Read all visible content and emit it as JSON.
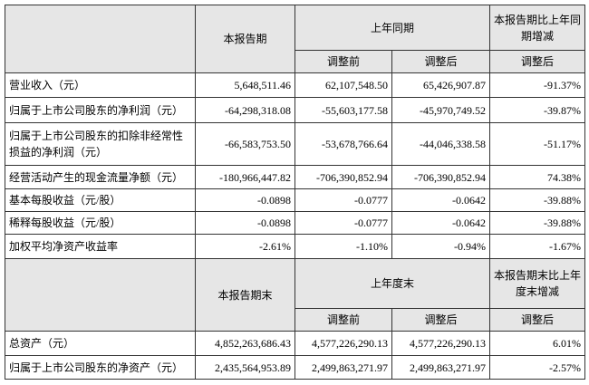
{
  "table1": {
    "header": {
      "current": "本报告期",
      "prior": "上年同期",
      "change": "本报告期比上年同期增减",
      "before": "调整前",
      "after": "调整后",
      "change_sub": "调整后"
    },
    "rows": [
      [
        "营业收入（元）",
        "5,648,511.46",
        "62,107,548.50",
        "65,426,907.87",
        "-91.37%"
      ],
      [
        "归属于上市公司股东的净利润（元）",
        "-64,298,318.08",
        "-55,603,177.58",
        "-45,970,749.52",
        "-39.87%"
      ],
      [
        "归属于上市公司股东的扣除非经常性损益的净利润（元）",
        "-66,583,753.50",
        "-53,678,766.64",
        "-44,046,338.58",
        "-51.17%"
      ],
      [
        "经营活动产生的现金流量净额（元）",
        "-180,966,447.82",
        "-706,390,852.94",
        "-706,390,852.94",
        "74.38%"
      ],
      [
        "基本每股收益（元/股）",
        "-0.0898",
        "-0.0777",
        "-0.0642",
        "-39.88%"
      ],
      [
        "稀释每股收益（元/股）",
        "-0.0898",
        "-0.0777",
        "-0.0642",
        "-39.88%"
      ],
      [
        "加权平均净资产收益率",
        "-2.61%",
        "-1.10%",
        "-0.94%",
        "-1.67%"
      ]
    ]
  },
  "table2": {
    "header": {
      "current": "本报告期末",
      "prior": "上年度末",
      "change": "本报告期末比上年度末增减",
      "before": "调整前",
      "after": "调整后",
      "change_sub": "调整后"
    },
    "rows": [
      [
        "总资产（元）",
        "4,852,263,686.43",
        "4,577,226,290.13",
        "4,577,226,290.13",
        "6.01%"
      ],
      [
        "归属于上市公司股东的净资产（元）",
        "2,435,564,953.89",
        "2,499,863,271.97",
        "2,499,863,271.97",
        "-2.57%"
      ]
    ]
  }
}
